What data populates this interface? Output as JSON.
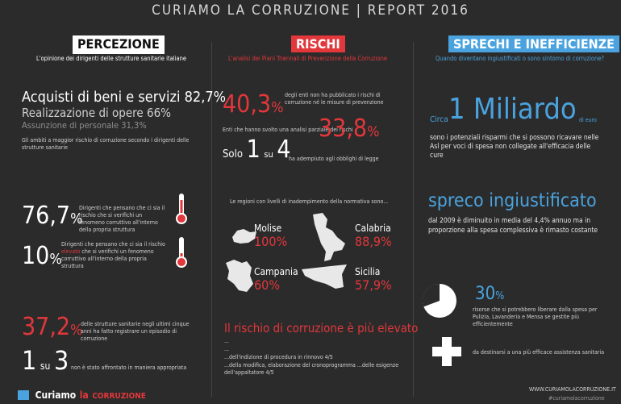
{
  "header": {
    "title": "CURIAMO LA CORRUZIONE | REPORT 2016"
  },
  "columns": {
    "percezione": {
      "title": "PERCEZIONE",
      "subtitle": "L'opinione dei dirigenti delle strutture sanitarie italiane",
      "areas": [
        {
          "label": "Acquisti di beni e servizi",
          "value": "82,7%"
        },
        {
          "label": "Realizzazione di opere",
          "value": "66%"
        },
        {
          "label": "Assunzione di personale",
          "value": "31,3%"
        }
      ],
      "areas_note": "Gli ambiti a maggior rischio di corruzione secondo i dirigenti delle strutture sanitarie",
      "stat1": {
        "number": "76,7",
        "unit": "%",
        "text": "Dirigenti che pensano che ci sia il rischio che si verifichi un fenomeno corruttivo all'interno della propria struttura"
      },
      "stat2": {
        "number": "10",
        "unit": "%",
        "text_a": "Dirigenti che pensano che ci sia il rischio ",
        "text_em": "elevato",
        "text_b": " che si verifichi un fenomeno corruttivo all'interno della propria struttura"
      },
      "stat3": {
        "number": "37,2",
        "unit": "%",
        "text": "delle strutture sanitarie negli ultimi cinque anni ha fatto registrare un episodio di corruzione"
      },
      "stat4": {
        "a": "1",
        "su": "su",
        "b": "3",
        "text": "non è stato affrontato in maniera appropriata"
      }
    },
    "rischi": {
      "title": "RISCHI",
      "subtitle": "L'analisi dei Piani Triennali di Prevenzione della Corruzione",
      "stat1": {
        "number": "40,3",
        "unit": "%",
        "text": "degli enti non ha pubblicato i rischi di corruzione né le misure di prevenzione"
      },
      "stat2": {
        "number": "33,8",
        "unit": "%",
        "text": "Enti che hanno svolto una analisi parziale dei rischi"
      },
      "stat3": {
        "solo": "Solo",
        "a": "1",
        "su": "su",
        "b": "4",
        "text": "ha adempiuto agli obblighi di legge"
      },
      "regions_intro": "Le regioni con livelli di inadempimento della normativa sono...",
      "regions": [
        {
          "name": "Molise",
          "value": "100%"
        },
        {
          "name": "Calabria",
          "value": "88,9%"
        },
        {
          "name": "Campania",
          "value": "60%"
        },
        {
          "name": "Sicilia",
          "value": "57,9%"
        }
      ],
      "bottom_title": "Il rischio di corruzione è più elevato",
      "bottom_lines": [
        "...",
        "...",
        "...dell'indizione di procedura in rinnovo 4/5",
        "...della modifica, elaborazione del cronoprogramma ...delle esigenze dell'appaltatore 4/5"
      ]
    },
    "sprechi": {
      "title": "SPRECHI E INEFFICIENZE",
      "subtitle": "Quando diventano ingiustificati o sono sintomo di corruzione?",
      "circa": "Circa",
      "miliardo": "1 Miliardo",
      "di_euro": "di euro",
      "miliardo_text": "sono i potenziali risparmi che si possono ricavare nelle Asl per voci di spesa non collegate all'efficacia delle cure",
      "spreco_title": "spreco ingiustificato",
      "spreco_text": "dal 2009 è diminuito in media del 4,4% annuo ma in proporzione alla spesa complessiva è rimasto costante",
      "pct": {
        "number": "30",
        "unit": "%"
      },
      "pct_text": "risorse che si potrebbero liberare dalla spesa per Pulizia, Lavanderia e Mensa se gestite più efficientemente",
      "plus_text": "da destinarsi a una più efficace assistenza sanitaria"
    }
  },
  "footer": {
    "logo_a": "Curiamo",
    "logo_b": "la",
    "logo_c": "CORRUZIONE",
    "url": "WWW.CURIAMOLACORRUZIONE.IT",
    "hashtag": "#curiamolacorruzione"
  },
  "colors": {
    "background": "#2b2b2b",
    "red": "#e2373b",
    "blue": "#4aa3df",
    "white": "#ffffff"
  },
  "icons": [
    "thermometer-icon",
    "thermometer-icon",
    "pie-icon",
    "plus-icon"
  ]
}
